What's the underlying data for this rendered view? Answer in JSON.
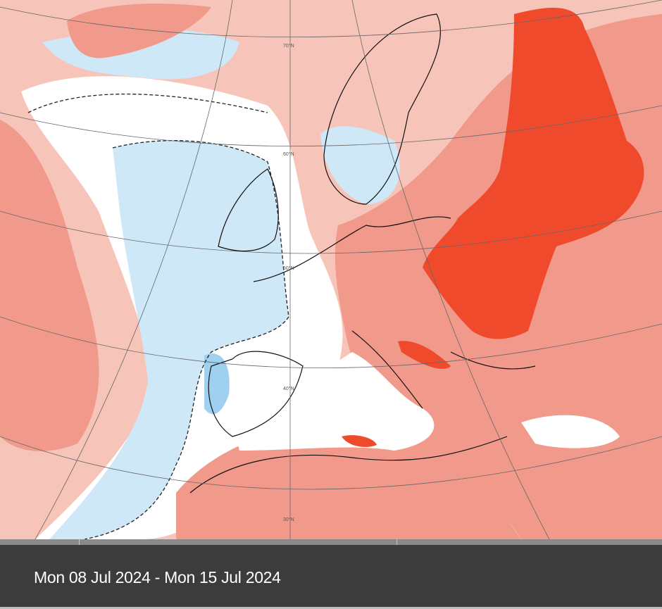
{
  "map": {
    "latitude_labels": [
      "70°N",
      "60°N",
      "50°N",
      "40°N",
      "30°N"
    ],
    "colors": {
      "weak_warm": "#f7c4b9",
      "moderate_warm": "#f1998a",
      "strong_warm": "#f04a2c",
      "near_normal": "#ffffff",
      "weak_cool": "#cfe8f8",
      "moderate_cool": "#9fd0f0",
      "coastline": "#111111"
    }
  },
  "caption": {
    "date_range": "Mon 08 Jul 2024 - Mon 15 Jul 2024"
  }
}
